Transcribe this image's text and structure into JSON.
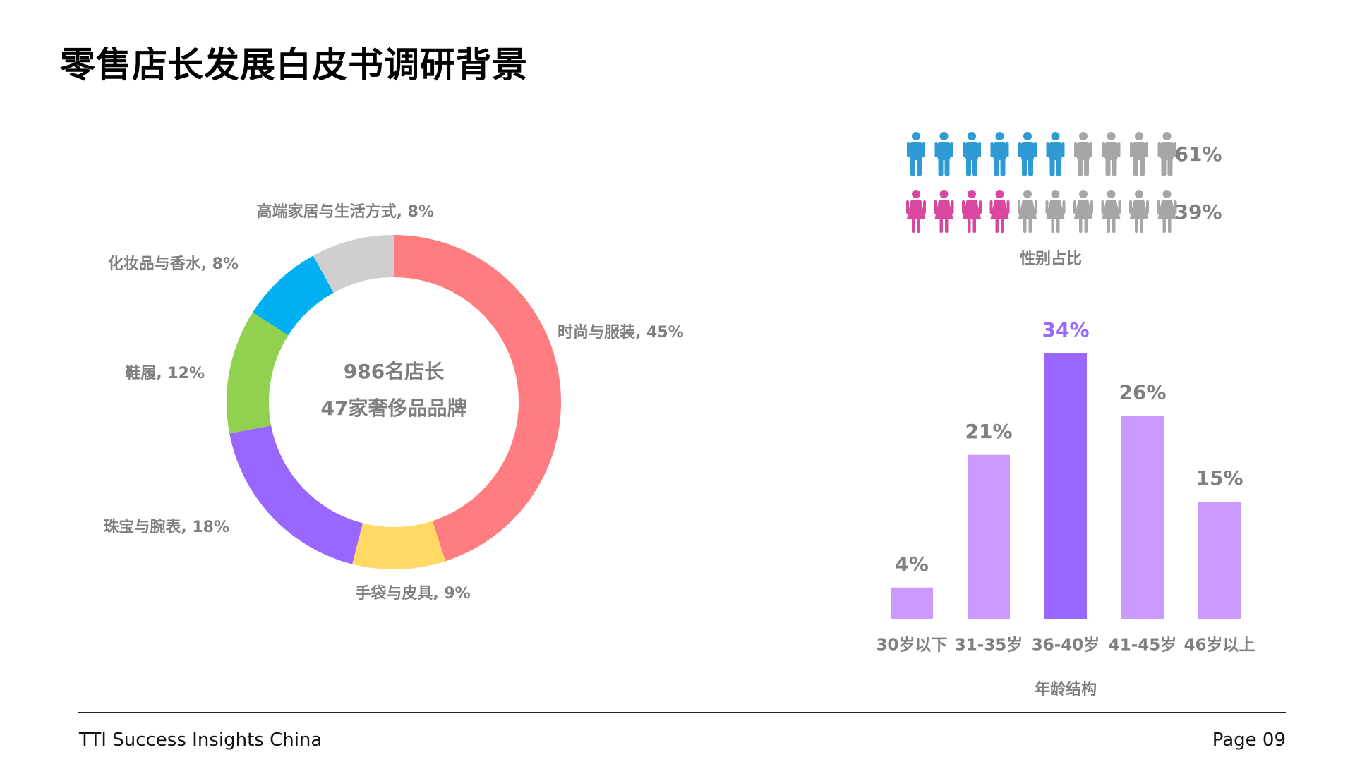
{
  "page": {
    "title": "零售店长发展白皮书调研背景",
    "footer_left": "TTI Success Insights China",
    "footer_right": "Page 09"
  },
  "chart_data": [
    {
      "type": "pie",
      "donut": true,
      "center_lines": [
        "986名店长",
        "47家奢侈品品牌"
      ],
      "slices": [
        {
          "label": "时尚与服装, 45%",
          "value": 45,
          "color": "#FF7C80"
        },
        {
          "label": "手袋与皮具, 9%",
          "value": 9,
          "color": "#FFD966"
        },
        {
          "label": "珠宝与腕表, 18%",
          "value": 18,
          "color": "#9966FF"
        },
        {
          "label": "鞋履, 12%",
          "value": 12,
          "color": "#92D050"
        },
        {
          "label": "化妆品与香水, 8%",
          "value": 8,
          "color": "#00B0F0"
        },
        {
          "label": "高端家居与生活方式, 8%",
          "value": 8,
          "color": "#D0CECE"
        }
      ]
    },
    {
      "type": "icon_array",
      "title": "性别占比",
      "rows": [
        {
          "icon": "male-person-icon",
          "value": 61,
          "label": "61%",
          "filled": 6,
          "total": 10,
          "color": "#2E9BD6"
        },
        {
          "icon": "female-person-icon",
          "value": 39,
          "label": "39%",
          "filled": 4,
          "total": 10,
          "color": "#D9489E"
        }
      ],
      "empty_color": "#A6A6A6"
    },
    {
      "type": "bar",
      "title": "年龄结构",
      "categories": [
        "30岁以下",
        "31-35岁",
        "36-40岁",
        "41-45岁",
        "46岁以上"
      ],
      "values": [
        4,
        21,
        34,
        26,
        15
      ],
      "labels": [
        "4%",
        "21%",
        "34%",
        "26%",
        "15%"
      ],
      "highlight_index": 2,
      "colors": {
        "normal": "#CC99FF",
        "highlight": "#9966FF",
        "label": "#7F7F7F",
        "highlight_label": "#9966FF"
      },
      "ylim": [
        0,
        34
      ]
    }
  ]
}
